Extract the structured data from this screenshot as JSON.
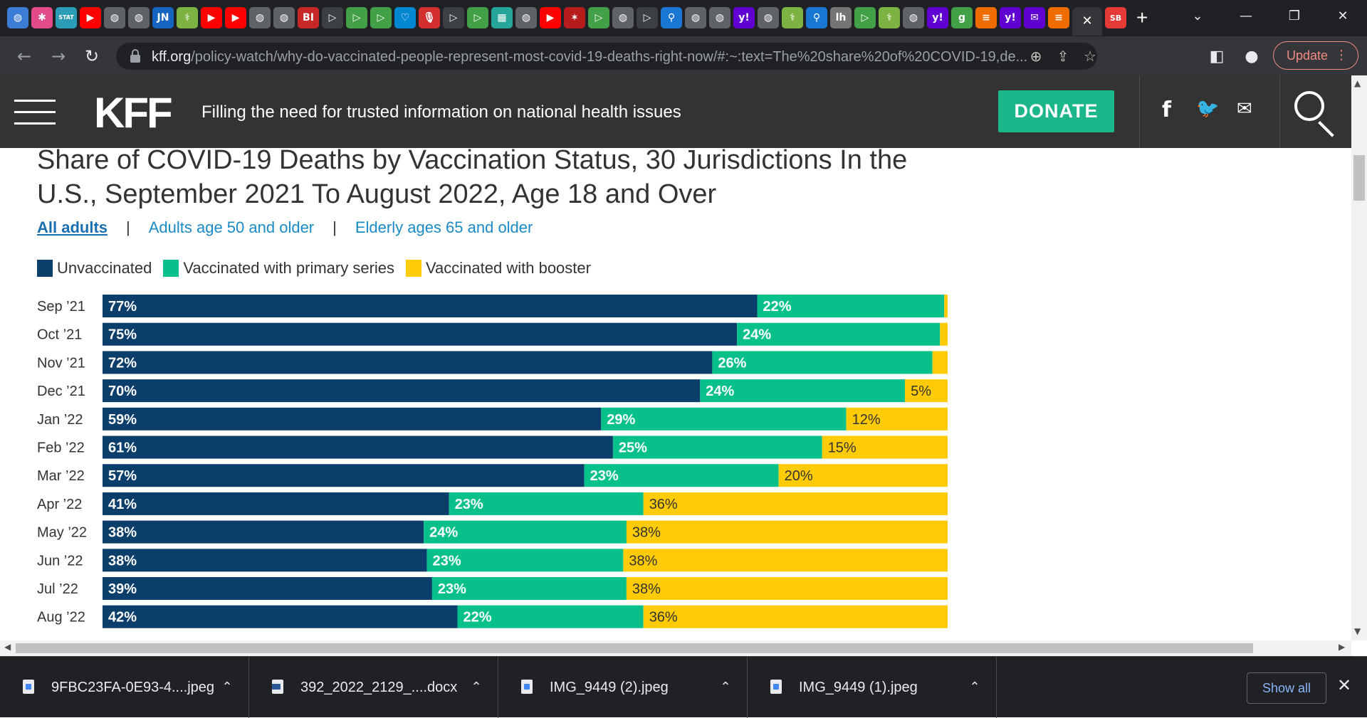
{
  "browser": {
    "tab_favicons": [
      {
        "name": "globe-favicon",
        "glyph": "◍",
        "bg": "#3c7bd6"
      },
      {
        "name": "asterisk-favicon",
        "glyph": "✱",
        "bg": "#e24a8a"
      },
      {
        "name": "stat-favicon",
        "glyph": "STAT",
        "bg": "#2b9cb5"
      },
      {
        "name": "youtube-favicon",
        "glyph": "▶",
        "bg": "#ff0000"
      },
      {
        "name": "globe-favicon",
        "glyph": "◍",
        "bg": "#5f6368"
      },
      {
        "name": "globe-favicon",
        "glyph": "◍",
        "bg": "#5f6368"
      },
      {
        "name": "jn-favicon",
        "glyph": "JN",
        "bg": "#1565c0"
      },
      {
        "name": "medical-favicon",
        "glyph": "⚕",
        "bg": "#7cb342"
      },
      {
        "name": "youtube-favicon",
        "glyph": "▶",
        "bg": "#ff0000"
      },
      {
        "name": "youtube-favicon",
        "glyph": "▶",
        "bg": "#ff0000"
      },
      {
        "name": "globe-favicon",
        "glyph": "◍",
        "bg": "#5f6368"
      },
      {
        "name": "globe-favicon",
        "glyph": "◍",
        "bg": "#5f6368"
      },
      {
        "name": "bi-favicon",
        "glyph": "BI",
        "bg": "#c62828"
      },
      {
        "name": "arrow-favicon",
        "glyph": "▷",
        "bg": "#3c4043"
      },
      {
        "name": "play-favicon",
        "glyph": "▷",
        "bg": "#43a047"
      },
      {
        "name": "play-favicon",
        "glyph": "▷",
        "bg": "#43a047"
      },
      {
        "name": "heart-favicon",
        "glyph": "♡",
        "bg": "#0288d1"
      },
      {
        "name": "mic-favicon",
        "glyph": "🎙",
        "bg": "#d32f2f"
      },
      {
        "name": "arrow-favicon",
        "glyph": "▷",
        "bg": "#3c4043"
      },
      {
        "name": "play-favicon",
        "glyph": "▷",
        "bg": "#43a047"
      },
      {
        "name": "grid-favicon",
        "glyph": "▦",
        "bg": "#26a69a"
      },
      {
        "name": "globe-favicon",
        "glyph": "◍",
        "bg": "#5f6368"
      },
      {
        "name": "youtube-favicon",
        "glyph": "▶",
        "bg": "#ff0000"
      },
      {
        "name": "star-favicon",
        "glyph": "✶",
        "bg": "#b71c1c"
      },
      {
        "name": "play-favicon",
        "glyph": "▷",
        "bg": "#43a047"
      },
      {
        "name": "globe-favicon",
        "glyph": "◍",
        "bg": "#5f6368"
      },
      {
        "name": "arrow-favicon",
        "glyph": "▷",
        "bg": "#3c4043"
      },
      {
        "name": "search-favicon",
        "glyph": "⚲",
        "bg": "#1976d2"
      },
      {
        "name": "globe-favicon",
        "glyph": "◍",
        "bg": "#5f6368"
      },
      {
        "name": "globe-favicon",
        "glyph": "◍",
        "bg": "#5f6368"
      },
      {
        "name": "yahoo-favicon",
        "glyph": "y!",
        "bg": "#6001d2"
      },
      {
        "name": "globe-favicon",
        "glyph": "◍",
        "bg": "#5f6368"
      },
      {
        "name": "medical-favicon",
        "glyph": "⚕",
        "bg": "#7cb342"
      },
      {
        "name": "search-favicon",
        "glyph": "⚲",
        "bg": "#1976d2"
      },
      {
        "name": "lh-favicon",
        "glyph": "lh",
        "bg": "#757575"
      },
      {
        "name": "play-favicon",
        "glyph": "▷",
        "bg": "#43a047"
      },
      {
        "name": "medical-favicon",
        "glyph": "⚕",
        "bg": "#7cb342"
      },
      {
        "name": "globe-favicon",
        "glyph": "◍",
        "bg": "#5f6368"
      },
      {
        "name": "yahoo-favicon",
        "glyph": "y!",
        "bg": "#6001d2"
      },
      {
        "name": "g-favicon",
        "glyph": "g",
        "bg": "#43a047"
      },
      {
        "name": "bookmark-favicon",
        "glyph": "≡",
        "bg": "#ef6c00"
      },
      {
        "name": "yahoo-favicon",
        "glyph": "y!",
        "bg": "#6001d2"
      },
      {
        "name": "mail-favicon",
        "glyph": "✉",
        "bg": "#6001d2"
      },
      {
        "name": "bookmark-favicon",
        "glyph": "≡",
        "bg": "#ef6c00"
      }
    ],
    "active_tab_close": "✕",
    "last_tab": {
      "name": "sb-favicon",
      "glyph": "SB",
      "bg": "#e53935"
    },
    "new_tab": "+",
    "window": {
      "tab_search": "⌄",
      "minimize": "—",
      "restore": "❐",
      "close": "✕"
    },
    "nav": {
      "back": "←",
      "forward": "→",
      "reload": "↻"
    },
    "url": {
      "domain": "kff.org",
      "path": "/policy-watch/why-do-vaccinated-people-represent-most-covid-19-deaths-right-now/#:~:text=The%20share%20of%20COVID-19,de..."
    },
    "omni_icons": {
      "zoom": "⊕",
      "share": "⇪",
      "bookmark": "☆"
    },
    "toolbar_icons": {
      "sidepanel": "◧",
      "profile": "●"
    },
    "update_label": "Update",
    "update_menu": "⋮"
  },
  "site": {
    "logo": "KFF",
    "tagline": "Filling the need for trusted information on national health issues",
    "donate_label": "DONATE",
    "social": {
      "facebook": "f",
      "twitter": "🐦",
      "email": "✉"
    }
  },
  "chart_tabs": [
    {
      "label": "All adults",
      "active": true
    },
    {
      "label": "Adults age 50 and older",
      "active": false
    },
    {
      "label": "Elderly ages 65 and older",
      "active": false
    }
  ],
  "tab_separator": "|",
  "colors": {
    "unvaccinated": "#0b3e6b",
    "primary": "#08c08a",
    "booster": "#ffcb05"
  },
  "chart_data": {
    "type": "bar",
    "orientation": "horizontal-stacked-100",
    "title": "Share of COVID-19 Deaths by Vaccination Status, 30 Jurisdictions In the U.S., September 2021 To August 2022, Age 18 and Over",
    "categories": [
      "Sep ’21",
      "Oct ’21",
      "Nov ’21",
      "Dec ’21",
      "Jan ’22",
      "Feb ’22",
      "Mar ’22",
      "Apr ’22",
      "May ’22",
      "Jun ’22",
      "Jul ’22",
      "Aug ’22"
    ],
    "series": [
      {
        "name": "Unvaccinated",
        "values": [
          77,
          75,
          72,
          70,
          59,
          61,
          57,
          41,
          38,
          38,
          39,
          42
        ],
        "labels": [
          "77%",
          "75%",
          "72%",
          "70%",
          "59%",
          "61%",
          "57%",
          "41%",
          "38%",
          "38%",
          "39%",
          "42%"
        ]
      },
      {
        "name": "Vaccinated with primary series",
        "values": [
          22,
          24,
          26,
          24,
          29,
          25,
          23,
          23,
          24,
          23,
          23,
          22
        ],
        "labels": [
          "22%",
          "24%",
          "26%",
          "24%",
          "29%",
          "25%",
          "23%",
          "23%",
          "24%",
          "23%",
          "23%",
          "22%"
        ]
      },
      {
        "name": "Vaccinated with booster",
        "values": [
          0.4,
          0.9,
          1.8,
          5,
          12,
          15,
          20,
          36,
          38,
          38,
          38,
          36
        ],
        "labels": [
          "",
          "",
          "",
          "5%",
          "12%",
          "15%",
          "20%",
          "36%",
          "38%",
          "38%",
          "38%",
          "36%"
        ]
      }
    ],
    "legend_position": "top-left",
    "xlim": [
      0,
      100
    ],
    "grid": false
  },
  "downloads": [
    {
      "name": "9FBC23FA-0E93-4....jpeg",
      "type": "image"
    },
    {
      "name": "392_2022_2129_....docx",
      "type": "doc"
    },
    {
      "name": "IMG_9449 (2).jpeg",
      "type": "image"
    },
    {
      "name": "IMG_9449 (1).jpeg",
      "type": "image"
    }
  ],
  "download_chevron": "⌃",
  "show_all_label": "Show all",
  "download_close": "✕",
  "scroll_arrows": {
    "up": "▲",
    "down": "▼",
    "left": "◀",
    "right": "▶"
  }
}
